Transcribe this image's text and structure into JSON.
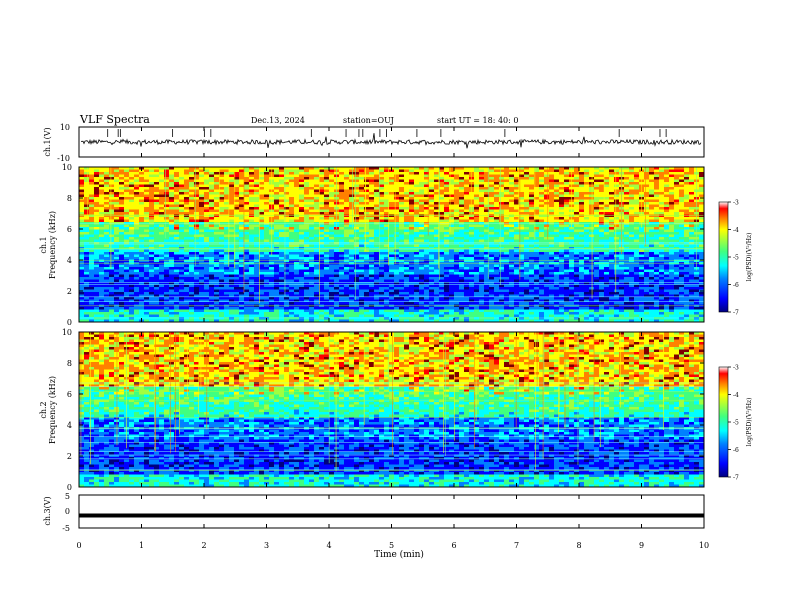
{
  "header": {
    "title": "VLF Spectra",
    "date": "Dec.13, 2024",
    "station": "station=OUJ",
    "start": "start UT =  18: 40: 0"
  },
  "colors": {
    "cmap": [
      "#00007f",
      "#0000ff",
      "#0080ff",
      "#00ffff",
      "#40ff80",
      "#a0ff40",
      "#ffff00",
      "#ff8000",
      "#ff0000",
      "#800000"
    ],
    "waveform": "#000000",
    "frame": "#000000"
  },
  "chart_data": [
    {
      "type": "line",
      "name": "ch1-waveform",
      "ylabel": "ch.1(V)",
      "ylim": [
        -10,
        10
      ],
      "yticks": [
        "10",
        "-10"
      ],
      "baseline": 0,
      "xlim": [
        0,
        10
      ]
    },
    {
      "type": "heatmap",
      "name": "ch1-spectrogram",
      "ylabel": "ch.1\nFrequency (kHz)",
      "ylabel_lines": [
        "ch.1",
        "Frequency (kHz)"
      ],
      "ylim": [
        0,
        10
      ],
      "yticks": [
        "0",
        "2",
        "4",
        "6",
        "8",
        "10"
      ],
      "xlim": [
        0,
        10
      ],
      "colorbar": {
        "label": "log(PSD)(V²/Hz)",
        "range": [
          -7,
          -3
        ],
        "ticks": [
          "-3",
          "-4",
          "-5",
          "-6",
          "-7"
        ]
      }
    },
    {
      "type": "heatmap",
      "name": "ch2-spectrogram",
      "ylabel": "ch.2\nFrequency (kHz)",
      "ylabel_lines": [
        "ch.2",
        "Frequency (kHz)"
      ],
      "ylim": [
        0,
        10
      ],
      "yticks": [
        "0",
        "2",
        "4",
        "6",
        "8",
        "10"
      ],
      "xlim": [
        0,
        10
      ],
      "colorbar": {
        "label": "log(PSD)(V²/Hz)",
        "range": [
          -7,
          -3
        ],
        "ticks": [
          "-3",
          "-4",
          "-5",
          "-6",
          "-7"
        ]
      }
    },
    {
      "type": "line",
      "name": "ch3-trace",
      "ylabel": "ch.3(V)",
      "ylim": [
        -5,
        5
      ],
      "yticks": [
        "5",
        "0",
        "-5"
      ],
      "value": -1.2,
      "xlim": [
        0,
        10
      ],
      "xlabel": "Time (min)",
      "xticks": [
        "0",
        "1",
        "2",
        "3",
        "4",
        "5",
        "6",
        "7",
        "8",
        "9",
        "10"
      ]
    }
  ]
}
